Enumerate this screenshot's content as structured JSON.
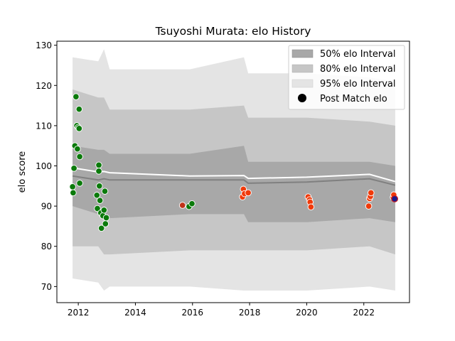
{
  "chart_data": {
    "type": "scatter",
    "title": "Tsuyoshi Murata: elo History",
    "ylabel": "elo score",
    "xlabel": "",
    "xlim": [
      2011.25,
      2023.6
    ],
    "ylim": [
      66,
      131
    ],
    "x_ticks": [
      2012,
      2014,
      2016,
      2018,
      2020,
      2022
    ],
    "y_ticks": [
      70,
      80,
      90,
      100,
      110,
      120,
      130
    ],
    "grid": false,
    "legend_position": "top-right",
    "legend": {
      "band50": "50% elo Interval",
      "band80": "80% elo Interval",
      "band95": "95% elo Interval",
      "points": "Post Match elo"
    },
    "colors": {
      "band50": "#a8a8a8",
      "band80": "#c6c6c6",
      "band95": "#e4e4e4",
      "median": "#808080",
      "mean": "#ffffff",
      "win": "#0b7a0b",
      "loss": "#f03a0a",
      "draw": "#c0331a",
      "current": "#1a1a8c",
      "point_edge": "#ffffff"
    },
    "bands": {
      "x": [
        2011.8,
        2012.7,
        2012.9,
        2013.1,
        2015.9,
        2017.8,
        2017.95,
        2020.0,
        2022.2,
        2023.1
      ],
      "p95_upper": [
        127,
        126,
        129,
        124,
        124,
        127,
        123,
        123,
        122,
        121
      ],
      "p95_lower": [
        72,
        71,
        69,
        70,
        70,
        69,
        69,
        69,
        70,
        69
      ],
      "p80_upper": [
        119,
        117,
        117,
        114,
        114,
        115,
        112,
        112,
        111,
        110
      ],
      "p80_lower": [
        80,
        80,
        78,
        78,
        79,
        79,
        79,
        79,
        80,
        78
      ],
      "p50_upper": [
        105,
        104,
        104,
        103,
        103,
        105,
        101,
        101,
        101,
        100
      ],
      "p50_lower": [
        90,
        88,
        87,
        87,
        88,
        88,
        86,
        86,
        87,
        86
      ],
      "median": [
        97.5,
        96.5,
        96.8,
        96.5,
        96.5,
        96.5,
        95.7,
        96.0,
        96.8,
        95.2
      ],
      "mean": [
        99.5,
        98.5,
        98.6,
        98.3,
        97.5,
        97.6,
        96.9,
        97.2,
        97.9,
        96.1
      ]
    },
    "points": [
      {
        "x": 2011.8,
        "y": 94.8,
        "result": "win"
      },
      {
        "x": 2011.82,
        "y": 93.3,
        "result": "win"
      },
      {
        "x": 2011.85,
        "y": 99.4,
        "result": "win"
      },
      {
        "x": 2011.88,
        "y": 105.0,
        "result": "win"
      },
      {
        "x": 2011.92,
        "y": 117.2,
        "result": "win"
      },
      {
        "x": 2011.95,
        "y": 110.0,
        "result": "win"
      },
      {
        "x": 2011.97,
        "y": 104.2,
        "result": "win"
      },
      {
        "x": 2012.0,
        "y": 109.6,
        "result": "win"
      },
      {
        "x": 2012.03,
        "y": 109.3,
        "result": "win"
      },
      {
        "x": 2012.03,
        "y": 114.1,
        "result": "win"
      },
      {
        "x": 2012.05,
        "y": 102.3,
        "result": "win"
      },
      {
        "x": 2012.05,
        "y": 95.7,
        "result": "win"
      },
      {
        "x": 2012.65,
        "y": 92.7,
        "result": "win"
      },
      {
        "x": 2012.67,
        "y": 89.4,
        "result": "win"
      },
      {
        "x": 2012.72,
        "y": 100.2,
        "result": "win"
      },
      {
        "x": 2012.72,
        "y": 98.7,
        "result": "win"
      },
      {
        "x": 2012.74,
        "y": 95.0,
        "result": "win"
      },
      {
        "x": 2012.76,
        "y": 91.4,
        "result": "win"
      },
      {
        "x": 2012.79,
        "y": 88.3,
        "result": "win"
      },
      {
        "x": 2012.81,
        "y": 84.5,
        "result": "win"
      },
      {
        "x": 2012.86,
        "y": 87.6,
        "result": "win"
      },
      {
        "x": 2012.9,
        "y": 89.0,
        "result": "win"
      },
      {
        "x": 2012.93,
        "y": 93.7,
        "result": "win"
      },
      {
        "x": 2012.95,
        "y": 85.6,
        "result": "win"
      },
      {
        "x": 2012.98,
        "y": 87.1,
        "result": "win"
      },
      {
        "x": 2015.65,
        "y": 90.2,
        "result": "draw"
      },
      {
        "x": 2015.88,
        "y": 89.9,
        "result": "win"
      },
      {
        "x": 2015.98,
        "y": 90.6,
        "result": "win"
      },
      {
        "x": 2017.75,
        "y": 92.3,
        "result": "loss"
      },
      {
        "x": 2017.78,
        "y": 94.2,
        "result": "loss"
      },
      {
        "x": 2017.82,
        "y": 93.1,
        "result": "loss"
      },
      {
        "x": 2017.95,
        "y": 93.3,
        "result": "loss"
      },
      {
        "x": 2020.05,
        "y": 92.3,
        "result": "loss"
      },
      {
        "x": 2020.1,
        "y": 91.6,
        "result": "loss"
      },
      {
        "x": 2020.12,
        "y": 91.0,
        "result": "loss"
      },
      {
        "x": 2020.15,
        "y": 89.8,
        "result": "loss"
      },
      {
        "x": 2022.17,
        "y": 90.0,
        "result": "loss"
      },
      {
        "x": 2022.2,
        "y": 91.9,
        "result": "loss"
      },
      {
        "x": 2022.23,
        "y": 92.4,
        "result": "loss"
      },
      {
        "x": 2022.25,
        "y": 93.3,
        "result": "loss"
      },
      {
        "x": 2023.03,
        "y": 92.2,
        "result": "loss"
      },
      {
        "x": 2023.05,
        "y": 92.8,
        "result": "loss"
      },
      {
        "x": 2023.08,
        "y": 91.8,
        "result": "current"
      }
    ]
  }
}
